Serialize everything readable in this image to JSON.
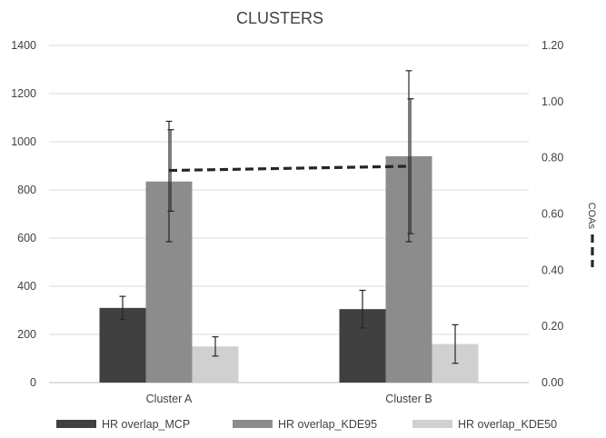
{
  "chart_data": {
    "type": "bar",
    "title": "CLUSTERS",
    "categories": [
      "Cluster A",
      "Cluster B"
    ],
    "series": [
      {
        "name": "HR overlap_MCP",
        "axis": "left",
        "color": "#404040",
        "values": [
          310,
          305
        ],
        "errors": [
          48,
          78
        ]
      },
      {
        "name": "HR overlap_KDE95",
        "axis": "left",
        "color": "#8c8c8c",
        "values": [
          835,
          940
        ],
        "errors": [
          250,
          355
        ]
      },
      {
        "name": "HR overlap_KDE50",
        "axis": "left",
        "color": "#d0d0d0",
        "values": [
          150,
          160
        ],
        "errors": [
          40,
          80
        ]
      }
    ],
    "line_series": {
      "name": "COAs",
      "axis": "right",
      "style": "dashed",
      "color": "#262626",
      "values": [
        0.755,
        0.77
      ],
      "errors": [
        0.145,
        0.24
      ]
    },
    "left_axis": {
      "min": 0,
      "max": 1400,
      "ticks": [
        "0",
        "200",
        "400",
        "600",
        "800",
        "1000",
        "1200",
        "1400"
      ]
    },
    "right_axis": {
      "min": 0,
      "max": 1.2,
      "ticks": [
        "0.00",
        "0.20",
        "0.40",
        "0.60",
        "0.80",
        "1.00",
        "1.20"
      ]
    },
    "grid": true,
    "legend": "bottom"
  }
}
